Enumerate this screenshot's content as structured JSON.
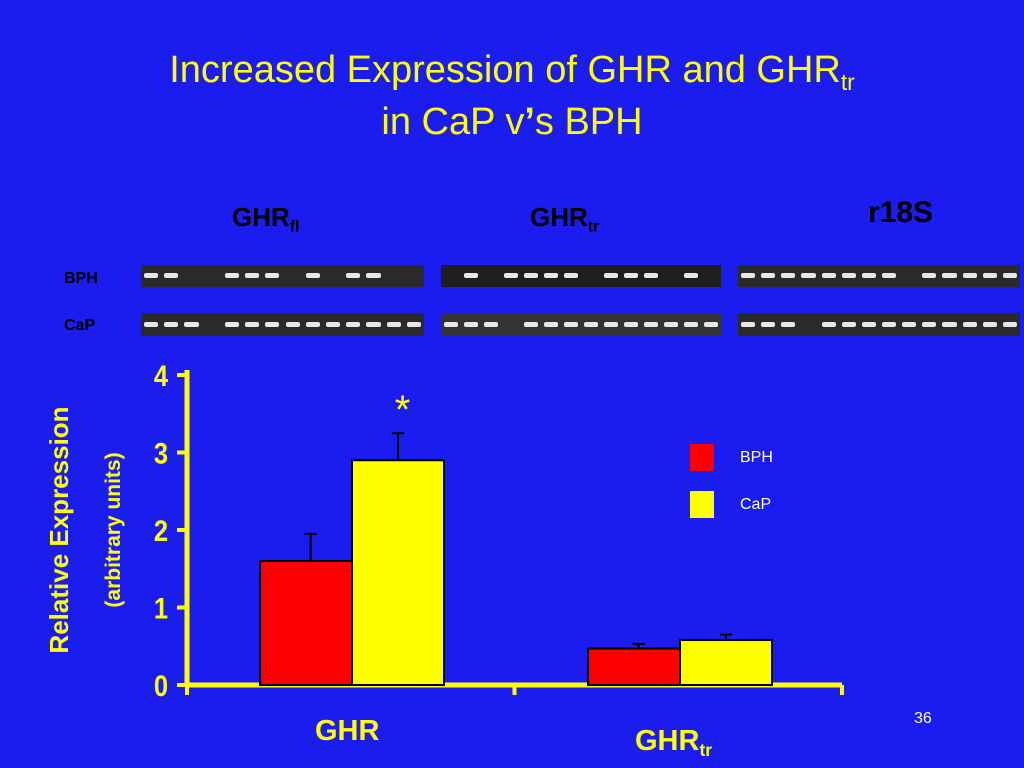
{
  "title": {
    "line1_main": "Increased Expression of GHR and GHR",
    "line1_sub": "tr",
    "line2_a": "in CaP v",
    "line2_b": "’",
    "line2_c": "s BPH"
  },
  "gel_panels": {
    "labels": [
      {
        "main": "GHR",
        "sub": "fl"
      },
      {
        "main": "GHR",
        "sub": "tr"
      },
      {
        "main": "r18S",
        "sub": ""
      }
    ],
    "row_labels": [
      "BPH",
      "CaP"
    ]
  },
  "slide_number": "36",
  "colors": {
    "background": "#1a1cf0",
    "text": "#ffff00",
    "bph": "#ff0000",
    "cap": "#ffff00"
  },
  "chart_data": {
    "type": "bar",
    "categories": [
      "GHR",
      "GHR"
    ],
    "category_subs": [
      "",
      "tr"
    ],
    "series": [
      {
        "name": "BPH",
        "values": [
          1.6,
          0.47
        ],
        "errors": [
          0.35,
          0.06
        ]
      },
      {
        "name": "CaP",
        "values": [
          2.9,
          0.58
        ],
        "errors": [
          0.35,
          0.07
        ]
      }
    ],
    "ylabel": "Relative Expression",
    "ylabel2": "(arbitrary units)",
    "ylim": [
      0,
      4
    ],
    "yticks": [
      "0",
      "1",
      "2",
      "3",
      "4"
    ],
    "annotation": "*",
    "legend_position": "right",
    "grid": false
  }
}
